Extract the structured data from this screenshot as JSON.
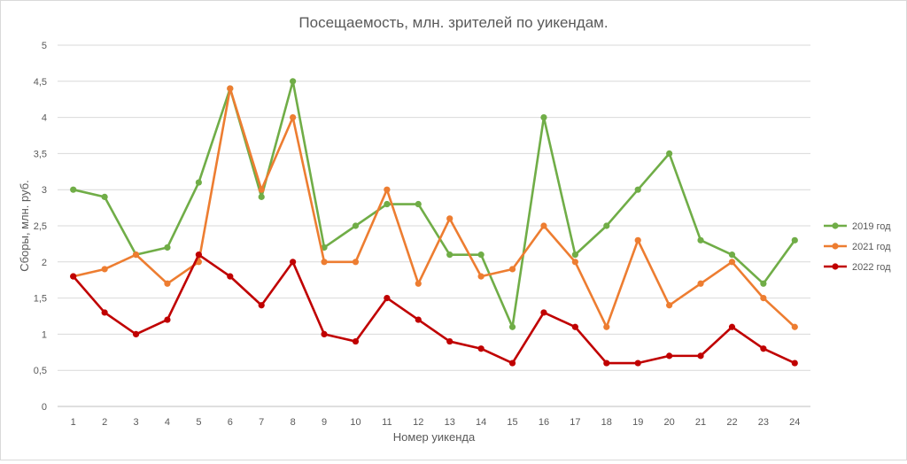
{
  "chart_data": {
    "type": "line",
    "title": "Посещаемость, млн. зрителей по уикендам.",
    "xlabel": "Номер уикенда",
    "ylabel": "Сборы, млн. руб.",
    "ylim": [
      0,
      5
    ],
    "yticks": [
      "0",
      "0,5",
      "1",
      "1,5",
      "2",
      "2,5",
      "3",
      "3,5",
      "4",
      "4,5",
      "5"
    ],
    "categories": [
      "1",
      "2",
      "3",
      "4",
      "5",
      "6",
      "7",
      "8",
      "9",
      "10",
      "11",
      "12",
      "13",
      "14",
      "15",
      "16",
      "17",
      "18",
      "19",
      "20",
      "21",
      "22",
      "23",
      "24"
    ],
    "grid": "horizontal",
    "legend_position": "right",
    "series": [
      {
        "name": "2019 год",
        "color": "#70AD47",
        "values": [
          3.0,
          2.9,
          2.1,
          2.2,
          3.1,
          4.4,
          2.9,
          4.5,
          2.2,
          2.5,
          2.8,
          2.8,
          2.1,
          2.1,
          1.1,
          4.0,
          2.1,
          2.5,
          3.0,
          3.5,
          2.3,
          2.1,
          1.7,
          2.3
        ]
      },
      {
        "name": "2021 год",
        "color": "#ED7D31",
        "values": [
          1.8,
          1.9,
          2.1,
          1.7,
          2.0,
          4.4,
          3.0,
          4.0,
          2.0,
          2.0,
          3.0,
          1.7,
          2.6,
          1.8,
          1.9,
          2.5,
          2.0,
          1.1,
          2.3,
          1.4,
          1.7,
          2.0,
          1.5,
          1.1
        ]
      },
      {
        "name": "2022 год",
        "color": "#C00000",
        "values": [
          1.8,
          1.3,
          1.0,
          1.2,
          2.1,
          1.8,
          1.4,
          2.0,
          1.0,
          0.9,
          1.5,
          1.2,
          0.9,
          0.8,
          0.6,
          1.3,
          1.1,
          0.6,
          0.6,
          0.7,
          0.7,
          1.1,
          0.8,
          0.6
        ]
      }
    ]
  }
}
